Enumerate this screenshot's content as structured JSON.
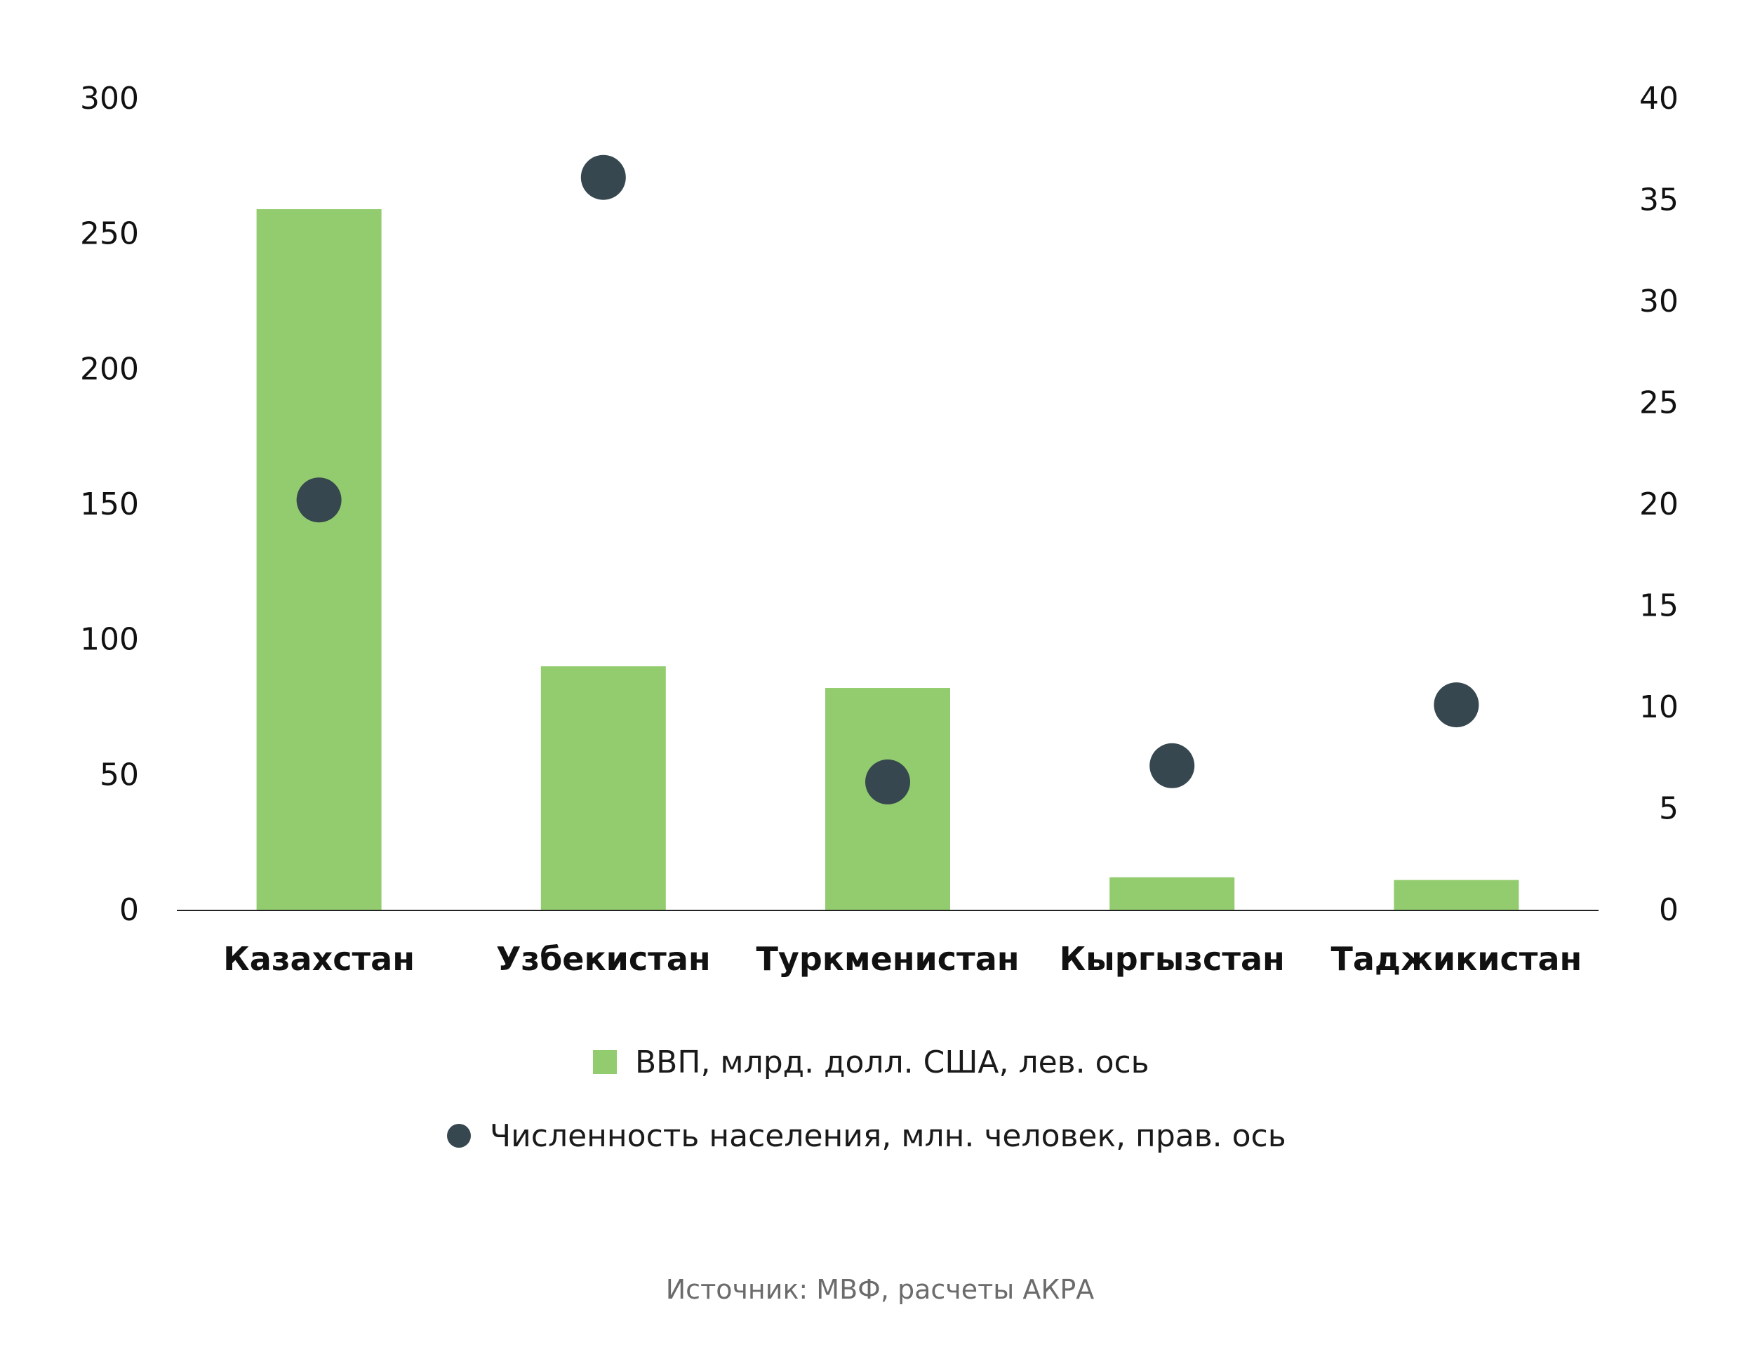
{
  "chart_data": {
    "type": "bar",
    "categories": [
      "Казахстан",
      "Узбекистан",
      "Туркменистан",
      "Кыргызстан",
      "Таджикистан"
    ],
    "series": [
      {
        "name": "ВВП, млрд. долл. США, лев. ось",
        "kind": "bar",
        "axis": "left",
        "color": "#93cc6f",
        "values": [
          259,
          90,
          82,
          12,
          11
        ]
      },
      {
        "name": "Численность населения, млн. человек, прав. ось",
        "kind": "scatter",
        "axis": "right",
        "color": "#36474f",
        "values": [
          20.2,
          36.1,
          6.3,
          7.1,
          10.1
        ]
      }
    ],
    "left_axis": {
      "min": 0,
      "max": 300,
      "ticks": [
        0,
        50,
        100,
        150,
        200,
        250,
        300
      ]
    },
    "right_axis": {
      "min": 0,
      "max": 40,
      "ticks": [
        0,
        5,
        10,
        15,
        20,
        25,
        30,
        35,
        40
      ]
    },
    "grid": false,
    "legend_position": "bottom-center",
    "source": "Источник: МВФ, расчеты АКРА"
  }
}
